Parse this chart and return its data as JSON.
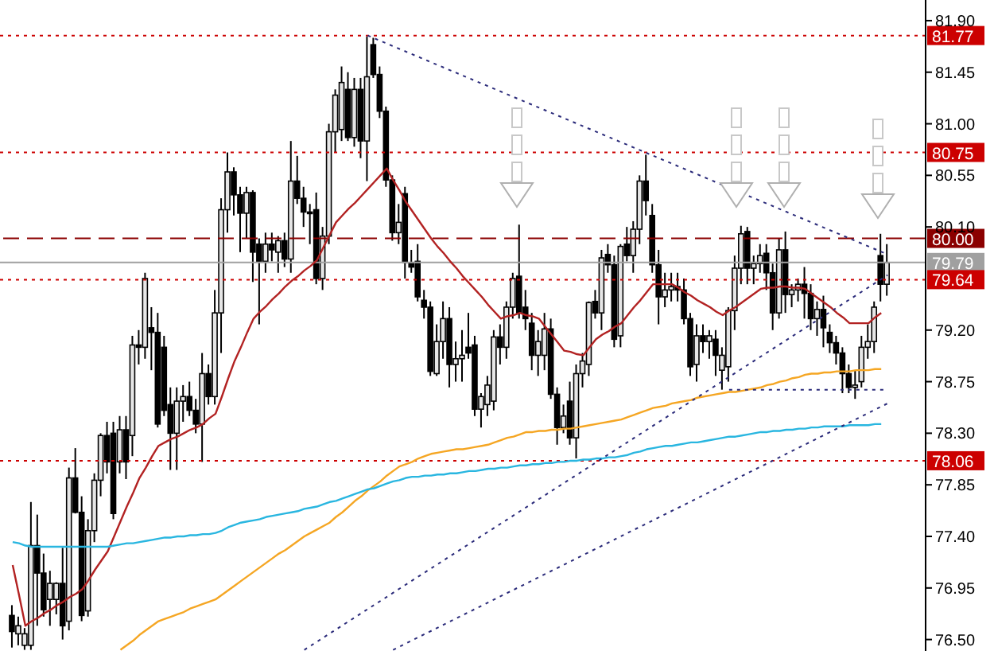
{
  "chart_data": {
    "type": "candlestick",
    "tick_labels": "y",
    "marker": "none",
    "categories": [
      null,
      null,
      null,
      null,
      null,
      null,
      null,
      null,
      null,
      null,
      null,
      null,
      null,
      null,
      null,
      null,
      null,
      null,
      null,
      null,
      null,
      null,
      null,
      null,
      null,
      null,
      null,
      null,
      null,
      null,
      null,
      null,
      null,
      null,
      null,
      null,
      null,
      null,
      null,
      null,
      null,
      null,
      null,
      null,
      null,
      null,
      null,
      null,
      null,
      null,
      null,
      null,
      null,
      null,
      null,
      null,
      null,
      null,
      null,
      null,
      null,
      null,
      null,
      null,
      null,
      null,
      null,
      null,
      null,
      null,
      null,
      null,
      null,
      null,
      null,
      null,
      null,
      null,
      null,
      null,
      null,
      null,
      null,
      null,
      null,
      null,
      null,
      null,
      null,
      null,
      null,
      null,
      null,
      null,
      null,
      null,
      null,
      null,
      null,
      null,
      null,
      null,
      null,
      null,
      null,
      null,
      null,
      null,
      null,
      null,
      null,
      null,
      null,
      null,
      null,
      null,
      null,
      null,
      null,
      null,
      null,
      null,
      null,
      null,
      null,
      null,
      null,
      null,
      null,
      null,
      null,
      null,
      null,
      null,
      null,
      null,
      null,
      null,
      null
    ],
    "ylim": [
      76.4,
      82.08
    ],
    "yticks": [
      {
        "value": 81.9,
        "label": "81.90"
      },
      81.45,
      {
        "value": 81.0,
        "label": "81.00"
      },
      80.55,
      {
        "value": 80.1,
        "label": "80.10"
      },
      {
        "value": 79.2,
        "label": "79.20"
      },
      78.75,
      {
        "value": 78.3,
        "label": "78.30"
      },
      77.85,
      {
        "value": 77.4,
        "label": "77.40"
      },
      76.95,
      {
        "value": 76.5,
        "label": "76.50"
      }
    ],
    "ohlc": [
      [
        76.71,
        76.8,
        76.43,
        76.57
      ],
      [
        76.55,
        76.7,
        76.45,
        76.62
      ],
      [
        76.45,
        76.6,
        76.41,
        76.55
      ],
      [
        76.45,
        77.7,
        76.41,
        77.32
      ],
      [
        77.32,
        77.59,
        76.62,
        77.08
      ],
      [
        77.08,
        77.25,
        76.7,
        76.76
      ],
      [
        76.85,
        77.1,
        76.62,
        76.99
      ],
      [
        76.85,
        77.0,
        76.72,
        76.99
      ],
      [
        76.99,
        77.3,
        76.5,
        76.62
      ],
      [
        76.66,
        78.0,
        76.58,
        77.91
      ],
      [
        77.91,
        78.17,
        77.6,
        77.61
      ],
      [
        77.61,
        77.75,
        76.66,
        76.71
      ],
      [
        76.75,
        77.55,
        76.7,
        77.45
      ],
      [
        77.45,
        77.95,
        77.35,
        77.89
      ],
      [
        77.89,
        78.3,
        77.75,
        78.28
      ],
      [
        78.28,
        78.4,
        77.95,
        78.05
      ],
      [
        78.3,
        78.4,
        77.55,
        77.6
      ],
      [
        78.05,
        78.45,
        77.95,
        78.33
      ],
      [
        78.33,
        78.45,
        77.9,
        78.05
      ],
      [
        78.28,
        79.15,
        78.1,
        79.07
      ],
      [
        79.07,
        79.2,
        78.9,
        79.05
      ],
      [
        79.05,
        79.7,
        78.95,
        79.65
      ],
      [
        79.22,
        79.4,
        78.85,
        79.18
      ],
      [
        79.18,
        79.35,
        78.35,
        78.38
      ],
      [
        79.05,
        79.15,
        78.45,
        78.5
      ],
      [
        78.55,
        78.7,
        77.98,
        78.3
      ],
      [
        78.3,
        78.7,
        77.98,
        78.58
      ],
      [
        78.58,
        78.72,
        78.4,
        78.62
      ],
      [
        78.62,
        78.75,
        78.45,
        78.5
      ],
      [
        78.5,
        78.6,
        78.3,
        78.38
      ],
      [
        78.38,
        79.0,
        78.05,
        78.82
      ],
      [
        78.82,
        78.9,
        78.55,
        78.62
      ],
      [
        78.62,
        79.55,
        78.55,
        79.35
      ],
      [
        79.35,
        80.35,
        79.0,
        80.25
      ],
      [
        80.25,
        80.75,
        80.05,
        80.58
      ],
      [
        80.58,
        80.62,
        80.2,
        80.38
      ],
      [
        80.38,
        80.45,
        79.88,
        80.22
      ],
      [
        80.22,
        80.45,
        80.0,
        80.4
      ],
      [
        80.4,
        80.42,
        79.62,
        79.88
      ],
      [
        79.95,
        80.0,
        79.25,
        79.8
      ],
      [
        79.8,
        80.05,
        79.7,
        79.95
      ],
      [
        79.95,
        80.05,
        79.8,
        79.9
      ],
      [
        79.88,
        80.02,
        79.7,
        79.98
      ],
      [
        79.98,
        80.05,
        79.75,
        79.82
      ],
      [
        79.82,
        80.85,
        79.7,
        80.5
      ],
      [
        80.5,
        80.72,
        80.3,
        80.35
      ],
      [
        80.35,
        80.45,
        80.1,
        80.23
      ],
      [
        80.23,
        80.3,
        79.95,
        80.22
      ],
      [
        80.25,
        80.4,
        79.6,
        79.65
      ],
      [
        79.65,
        80.1,
        79.55,
        80.02
      ],
      [
        80.02,
        81.0,
        79.95,
        80.93
      ],
      [
        80.93,
        81.3,
        80.75,
        81.25
      ],
      [
        80.95,
        81.5,
        80.85,
        81.36
      ],
      [
        81.3,
        81.45,
        80.85,
        80.88
      ],
      [
        80.88,
        81.4,
        80.8,
        81.3
      ],
      [
        81.3,
        81.4,
        80.7,
        80.85
      ],
      [
        80.85,
        81.76,
        80.5,
        81.41
      ],
      [
        81.69,
        81.75,
        81.4,
        81.43
      ],
      [
        81.43,
        81.5,
        81.05,
        81.11
      ],
      [
        81.11,
        81.15,
        80.45,
        80.51
      ],
      [
        80.51,
        80.55,
        79.98,
        80.05
      ],
      [
        80.05,
        80.3,
        79.95,
        80.14
      ],
      [
        80.39,
        80.45,
        79.65,
        79.79
      ],
      [
        79.79,
        79.9,
        79.7,
        79.75
      ],
      [
        79.8,
        79.95,
        79.45,
        79.49
      ],
      [
        79.46,
        79.55,
        79.3,
        79.4
      ],
      [
        79.4,
        79.45,
        78.8,
        78.84
      ],
      [
        78.82,
        79.25,
        78.8,
        79.1
      ],
      [
        79.1,
        79.45,
        78.95,
        79.3
      ],
      [
        79.3,
        79.4,
        78.7,
        78.9
      ],
      [
        78.9,
        79.1,
        78.75,
        78.95
      ],
      [
        78.95,
        79.2,
        78.75,
        78.98
      ],
      [
        79.05,
        79.35,
        78.95,
        79.0
      ],
      [
        79.07,
        79.15,
        78.45,
        78.51
      ],
      [
        78.51,
        78.65,
        78.35,
        78.62
      ],
      [
        78.55,
        78.8,
        78.45,
        78.72
      ],
      [
        78.58,
        79.2,
        78.5,
        79.14
      ],
      [
        79.14,
        79.25,
        78.9,
        79.05
      ],
      [
        79.05,
        79.45,
        78.95,
        79.4
      ],
      [
        79.4,
        79.7,
        79.3,
        79.65
      ],
      [
        79.67,
        80.12,
        79.3,
        79.35
      ],
      [
        79.4,
        79.55,
        79.2,
        79.3
      ],
      [
        79.26,
        79.35,
        78.85,
        78.98
      ],
      [
        78.98,
        79.2,
        78.8,
        79.1
      ],
      [
        78.98,
        79.35,
        78.85,
        79.21
      ],
      [
        79.21,
        79.3,
        78.6,
        78.64
      ],
      [
        78.64,
        78.7,
        78.2,
        78.35
      ],
      [
        78.35,
        78.55,
        78.3,
        78.45
      ],
      [
        78.58,
        78.75,
        78.2,
        78.26
      ],
      [
        78.26,
        78.9,
        78.08,
        78.82
      ],
      [
        78.82,
        79.0,
        78.7,
        78.93
      ],
      [
        78.9,
        79.45,
        78.8,
        79.44
      ],
      [
        79.45,
        79.55,
        79.3,
        79.35
      ],
      [
        79.35,
        79.9,
        79.2,
        79.83
      ],
      [
        79.86,
        79.95,
        79.7,
        79.77
      ],
      [
        79.77,
        79.85,
        79.05,
        79.12
      ],
      [
        79.15,
        79.95,
        79.05,
        79.93
      ],
      [
        79.95,
        80.1,
        79.8,
        79.85
      ],
      [
        79.85,
        80.15,
        79.7,
        80.08
      ],
      [
        80.08,
        80.55,
        79.95,
        80.5
      ],
      [
        80.5,
        80.73,
        80.2,
        80.33
      ],
      [
        80.2,
        80.3,
        79.7,
        79.77
      ],
      [
        79.77,
        79.9,
        79.25,
        79.49
      ],
      [
        79.49,
        79.7,
        79.4,
        79.55
      ],
      [
        79.55,
        79.7,
        79.45,
        79.58
      ],
      [
        79.58,
        79.7,
        79.45,
        79.55
      ],
      [
        79.55,
        79.65,
        79.25,
        79.3
      ],
      [
        79.3,
        79.35,
        78.8,
        78.88
      ],
      [
        78.9,
        79.25,
        78.75,
        79.15
      ],
      [
        79.15,
        79.25,
        79.0,
        79.1
      ],
      [
        79.1,
        79.2,
        78.95,
        79.15
      ],
      [
        79.12,
        79.2,
        78.8,
        78.98
      ],
      [
        78.85,
        79.05,
        78.68,
        78.98
      ],
      [
        78.88,
        79.4,
        78.75,
        79.37
      ],
      [
        79.37,
        79.85,
        79.2,
        79.74
      ],
      [
        79.74,
        80.11,
        79.6,
        80.04
      ],
      [
        80.06,
        80.1,
        79.6,
        79.74
      ],
      [
        79.74,
        79.85,
        79.6,
        79.78
      ],
      [
        79.78,
        79.95,
        79.7,
        79.85
      ],
      [
        79.87,
        79.95,
        79.55,
        79.7
      ],
      [
        79.7,
        79.78,
        79.2,
        79.35
      ],
      [
        79.35,
        80.0,
        79.3,
        79.9
      ],
      [
        79.9,
        80.06,
        79.35,
        79.51
      ],
      [
        79.51,
        79.6,
        79.4,
        79.55
      ],
      [
        79.55,
        79.65,
        79.45,
        79.6
      ],
      [
        79.6,
        79.75,
        79.3,
        79.52
      ],
      [
        79.52,
        79.6,
        79.2,
        79.3
      ],
      [
        79.3,
        79.45,
        79.15,
        79.38
      ],
      [
        79.38,
        79.5,
        79.05,
        79.22
      ],
      [
        79.18,
        79.25,
        79.0,
        79.09
      ],
      [
        79.09,
        79.15,
        78.9,
        79.0
      ],
      [
        79.0,
        79.05,
        78.65,
        78.82
      ],
      [
        78.82,
        78.9,
        78.65,
        78.7
      ],
      [
        78.7,
        78.85,
        78.6,
        78.72
      ],
      [
        78.75,
        79.15,
        78.7,
        79.05
      ],
      [
        79.05,
        79.25,
        78.95,
        79.1
      ],
      [
        79.1,
        79.45,
        79.0,
        79.4
      ],
      [
        79.85,
        80.04,
        79.45,
        79.6
      ],
      [
        79.6,
        79.95,
        79.5,
        79.79
      ]
    ],
    "series": [
      {
        "type": "line",
        "color": "#b22222",
        "values": [
          77.15,
          76.89,
          76.62,
          76.66,
          76.69,
          76.73,
          76.76,
          76.8,
          76.83,
          76.87,
          76.9,
          76.94,
          77.02,
          77.11,
          77.19,
          77.27,
          77.4,
          77.53,
          77.66,
          77.78,
          77.91,
          78.0,
          78.1,
          78.19,
          78.22,
          78.25,
          78.27,
          78.3,
          78.33,
          78.35,
          78.38,
          78.43,
          78.47,
          78.62,
          78.78,
          78.93,
          79.05,
          79.18,
          79.3,
          79.36,
          79.41,
          79.47,
          79.52,
          79.58,
          79.63,
          79.67,
          79.72,
          79.76,
          79.81,
          79.92,
          80.03,
          80.14,
          80.2,
          80.26,
          80.31,
          80.37,
          80.43,
          80.49,
          80.55,
          80.61,
          80.51,
          80.42,
          80.32,
          80.24,
          80.16,
          80.08,
          80.0,
          79.93,
          79.87,
          79.8,
          79.74,
          79.67,
          79.61,
          79.55,
          79.49,
          79.42,
          79.36,
          79.3,
          79.32,
          79.33,
          79.35,
          79.33,
          79.32,
          79.3,
          79.23,
          79.16,
          79.09,
          79.02,
          79.01,
          78.99,
          78.98,
          79.05,
          79.12,
          79.16,
          79.19,
          79.23,
          79.26,
          79.33,
          79.4,
          79.46,
          79.53,
          79.6,
          79.6,
          79.6,
          79.6,
          79.57,
          79.53,
          79.5,
          79.46,
          79.43,
          79.4,
          79.36,
          79.33,
          79.37,
          79.4,
          79.44,
          79.48,
          79.52,
          79.56,
          79.57,
          79.57,
          79.58,
          79.58,
          79.57,
          79.57,
          79.56,
          79.52,
          79.48,
          79.44,
          79.4,
          79.35,
          79.31,
          79.26,
          79.26,
          79.26,
          79.26,
          79.31,
          79.35,
          null
        ]
      },
      {
        "type": "line",
        "color": "#f5a623",
        "values": [
          null,
          null,
          null,
          null,
          null,
          null,
          null,
          null,
          null,
          null,
          null,
          null,
          null,
          null,
          null,
          null,
          null,
          76.41,
          76.45,
          76.49,
          76.54,
          76.58,
          76.62,
          76.66,
          76.68,
          76.7,
          76.72,
          76.74,
          76.77,
          76.79,
          76.81,
          76.83,
          76.85,
          76.89,
          76.93,
          76.97,
          77.01,
          77.05,
          77.09,
          77.13,
          77.17,
          77.21,
          77.25,
          77.28,
          77.32,
          77.36,
          77.4,
          77.43,
          77.46,
          77.49,
          77.52,
          77.57,
          77.61,
          77.66,
          77.71,
          77.75,
          77.8,
          77.84,
          77.88,
          77.93,
          77.97,
          78.01,
          78.03,
          78.05,
          78.08,
          78.1,
          78.12,
          78.13,
          78.14,
          78.15,
          78.16,
          78.16,
          78.17,
          78.18,
          78.19,
          78.2,
          78.22,
          78.24,
          78.26,
          78.27,
          78.29,
          78.31,
          78.31,
          78.32,
          78.32,
          78.33,
          78.33,
          78.34,
          78.34,
          78.35,
          78.36,
          78.37,
          78.38,
          78.39,
          78.4,
          78.41,
          78.42,
          78.44,
          78.46,
          78.48,
          78.5,
          78.52,
          78.53,
          78.54,
          78.56,
          78.57,
          78.58,
          78.59,
          78.61,
          78.62,
          78.63,
          78.64,
          78.65,
          78.66,
          78.66,
          78.67,
          78.68,
          78.69,
          78.7,
          78.72,
          78.73,
          78.75,
          78.76,
          78.78,
          78.79,
          78.81,
          78.82,
          78.82,
          78.83,
          78.83,
          78.84,
          78.84,
          78.84,
          78.85,
          78.85,
          78.85,
          78.86,
          78.86,
          null
        ]
      },
      {
        "type": "line",
        "color": "#29b6e0",
        "values": [
          77.35,
          77.34,
          77.32,
          77.31,
          77.31,
          77.31,
          77.31,
          77.31,
          77.31,
          77.31,
          77.31,
          77.31,
          77.31,
          77.31,
          77.31,
          77.31,
          77.32,
          77.33,
          77.34,
          77.34,
          77.35,
          77.36,
          77.37,
          77.38,
          77.39,
          77.39,
          77.4,
          77.4,
          77.41,
          77.41,
          77.42,
          77.42,
          77.43,
          77.45,
          77.48,
          77.5,
          77.52,
          77.53,
          77.54,
          77.55,
          77.57,
          77.58,
          77.59,
          77.6,
          77.61,
          77.62,
          77.64,
          77.65,
          77.66,
          77.68,
          77.7,
          77.71,
          77.73,
          77.75,
          77.77,
          77.79,
          77.81,
          77.82,
          77.84,
          77.86,
          77.88,
          77.89,
          77.91,
          77.92,
          77.92,
          77.93,
          77.93,
          77.94,
          77.94,
          77.95,
          77.95,
          77.96,
          77.97,
          77.97,
          77.98,
          77.99,
          77.99,
          78.0,
          78.0,
          78.01,
          78.02,
          78.02,
          78.03,
          78.03,
          78.04,
          78.04,
          78.05,
          78.05,
          78.06,
          78.06,
          78.07,
          78.07,
          78.08,
          78.08,
          78.09,
          78.09,
          78.1,
          78.11,
          78.13,
          78.14,
          78.16,
          78.17,
          78.18,
          78.19,
          78.19,
          78.2,
          78.21,
          78.22,
          78.22,
          78.23,
          78.24,
          78.25,
          78.26,
          78.27,
          78.27,
          78.28,
          78.29,
          78.3,
          78.31,
          78.31,
          78.32,
          78.32,
          78.33,
          78.33,
          78.34,
          78.34,
          78.35,
          78.35,
          78.36,
          78.36,
          78.36,
          78.36,
          78.37,
          78.37,
          78.37,
          78.37,
          78.38,
          78.38,
          null
        ]
      },
      {
        "type": "line",
        "color": "#2b2b7a",
        "line_style": "dotted",
        "values": [
          null,
          null,
          null,
          null,
          null,
          null,
          null,
          null,
          null,
          null,
          null,
          null,
          null,
          null,
          null,
          null,
          null,
          null,
          null,
          null,
          null,
          null,
          null,
          null,
          null,
          null,
          null,
          null,
          null,
          null,
          null,
          null,
          null,
          null,
          null,
          null,
          null,
          null,
          null,
          null,
          null,
          null,
          null,
          null,
          null,
          null,
          null,
          null,
          null,
          null,
          null,
          null,
          null,
          null,
          null,
          null,
          81.77,
          null,
          null,
          null,
          null,
          null,
          null,
          null,
          null,
          null,
          null,
          null,
          null,
          null,
          null,
          null,
          null,
          null,
          null,
          null,
          null,
          null,
          null,
          null,
          null,
          null,
          null,
          null,
          null,
          null,
          null,
          null,
          null,
          null,
          null,
          null,
          null,
          null,
          null,
          null,
          null,
          null,
          null,
          null,
          null,
          null,
          null,
          null,
          null,
          null,
          null,
          null,
          null,
          null,
          null,
          null,
          null,
          null,
          null,
          null,
          null,
          null,
          null,
          null,
          null,
          null,
          null,
          null,
          null,
          null,
          null,
          null,
          null,
          null,
          null,
          null,
          null,
          null,
          null,
          null,
          null,
          null,
          79.86
        ]
      },
      {
        "type": "line",
        "color": "#2b2b7a",
        "line_style": "dotted",
        "values": [
          null,
          null,
          null,
          null,
          null,
          null,
          null,
          null,
          null,
          null,
          null,
          null,
          null,
          null,
          null,
          null,
          null,
          null,
          null,
          null,
          null,
          null,
          null,
          null,
          null,
          null,
          null,
          null,
          null,
          null,
          null,
          null,
          null,
          null,
          null,
          null,
          null,
          null,
          null,
          null,
          null,
          null,
          null,
          null,
          null,
          null,
          76.41,
          null,
          null,
          null,
          null,
          null,
          null,
          null,
          null,
          null,
          null,
          null,
          null,
          null,
          null,
          null,
          null,
          null,
          null,
          null,
          null,
          null,
          null,
          null,
          null,
          null,
          null,
          null,
          null,
          null,
          null,
          null,
          null,
          null,
          null,
          null,
          null,
          null,
          null,
          null,
          null,
          null,
          null,
          null,
          null,
          null,
          null,
          null,
          null,
          null,
          null,
          null,
          null,
          null,
          null,
          null,
          null,
          null,
          null,
          null,
          null,
          null,
          null,
          null,
          null,
          null,
          null,
          null,
          null,
          null,
          null,
          null,
          null,
          null,
          null,
          null,
          null,
          null,
          null,
          null,
          null,
          null,
          null,
          null,
          null,
          null,
          null,
          null,
          null,
          null,
          null,
          null,
          79.68
        ]
      },
      {
        "type": "line",
        "color": "#2b2b7a",
        "line_style": "dotted",
        "values": [
          null,
          null,
          null,
          null,
          null,
          null,
          null,
          null,
          null,
          null,
          null,
          null,
          null,
          null,
          null,
          null,
          null,
          null,
          null,
          null,
          null,
          null,
          null,
          null,
          null,
          null,
          null,
          null,
          null,
          null,
          null,
          null,
          null,
          null,
          null,
          null,
          null,
          null,
          null,
          null,
          null,
          null,
          null,
          null,
          null,
          null,
          null,
          null,
          null,
          null,
          null,
          null,
          null,
          null,
          null,
          null,
          null,
          null,
          null,
          null,
          76.41,
          null,
          null,
          null,
          null,
          null,
          null,
          null,
          null,
          null,
          null,
          null,
          null,
          null,
          null,
          null,
          null,
          null,
          null,
          null,
          null,
          null,
          null,
          null,
          null,
          null,
          null,
          null,
          null,
          null,
          null,
          null,
          null,
          null,
          null,
          null,
          null,
          null,
          null,
          null,
          null,
          null,
          null,
          null,
          null,
          null,
          null,
          null,
          null,
          null,
          null,
          null,
          null,
          null,
          null,
          null,
          null,
          null,
          null,
          null,
          null,
          null,
          null,
          null,
          null,
          null,
          null,
          null,
          null,
          null,
          null,
          null,
          null,
          null,
          null,
          null,
          null,
          null,
          78.56
        ]
      },
      {
        "type": "line",
        "color": "#2b2b7a",
        "line_style": "dotted",
        "values": [
          null,
          null,
          null,
          null,
          null,
          null,
          null,
          null,
          null,
          null,
          null,
          null,
          null,
          null,
          null,
          null,
          null,
          null,
          null,
          null,
          null,
          null,
          null,
          null,
          null,
          null,
          null,
          null,
          null,
          null,
          null,
          null,
          null,
          null,
          null,
          null,
          null,
          null,
          null,
          null,
          null,
          null,
          null,
          null,
          null,
          null,
          null,
          null,
          null,
          null,
          null,
          null,
          null,
          null,
          null,
          null,
          null,
          null,
          null,
          null,
          null,
          null,
          null,
          null,
          null,
          null,
          null,
          null,
          null,
          null,
          null,
          null,
          null,
          null,
          null,
          null,
          null,
          null,
          null,
          null,
          null,
          null,
          null,
          null,
          null,
          null,
          null,
          null,
          null,
          null,
          null,
          null,
          null,
          null,
          null,
          null,
          null,
          null,
          null,
          null,
          null,
          null,
          null,
          null,
          null,
          null,
          null,
          null,
          null,
          null,
          null,
          null,
          null,
          78.68,
          null,
          null,
          null,
          null,
          null,
          null,
          null,
          null,
          null,
          null,
          null,
          null,
          null,
          null,
          null,
          null,
          null,
          null,
          null,
          null,
          null,
          null,
          null,
          null,
          78.68
        ]
      }
    ],
    "ref_lines": [
      {
        "axis": "y",
        "value": 81.77,
        "label": "81.77",
        "color": "#cc0000",
        "line_style": "dotted"
      },
      {
        "axis": "y",
        "value": 80.75,
        "label": "80.75",
        "color": "#cc0000",
        "line_style": "dotted"
      },
      {
        "axis": "y",
        "value": 80.0,
        "label": "80.00",
        "color": "#8b0000",
        "line_style": "dashed"
      },
      {
        "axis": "y",
        "value": 79.79,
        "label": "79.79",
        "color": "#a0a0a0",
        "line_style": "solid"
      },
      {
        "axis": "y",
        "value": 79.64,
        "label": "79.64",
        "color": "#cc0000",
        "line_style": "dotted"
      },
      {
        "axis": "y",
        "value": 78.06,
        "label": "78.06",
        "color": "#cc0000",
        "line_style": "dotted"
      }
    ]
  }
}
